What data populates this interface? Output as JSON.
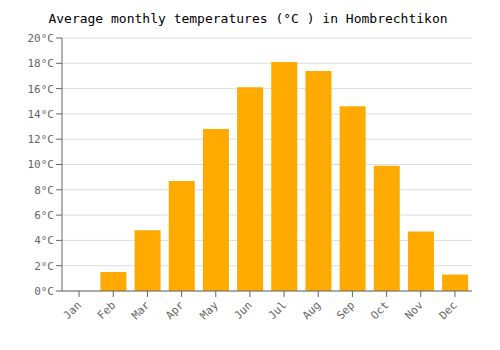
{
  "chart_data": {
    "type": "bar",
    "title": "Average monthly temperatures (°C ) in Hombrechtikon",
    "categories": [
      "Jan",
      "Feb",
      "Mar",
      "Apr",
      "May",
      "Jun",
      "Jul",
      "Aug",
      "Sep",
      "Oct",
      "Nov",
      "Dec"
    ],
    "values": [
      0.0,
      1.5,
      4.8,
      8.7,
      12.8,
      16.1,
      18.1,
      17.4,
      14.6,
      9.9,
      4.7,
      1.3
    ],
    "color": "#FFAA00",
    "ylim": [
      0,
      20
    ],
    "yticks": [
      {
        "value": 0,
        "label": "0°C"
      },
      {
        "value": 2,
        "label": "2°C"
      },
      {
        "value": 4,
        "label": "4°C"
      },
      {
        "value": 6,
        "label": "6°C"
      },
      {
        "value": 8,
        "label": "8°C"
      },
      {
        "value": 10,
        "label": "10°C"
      },
      {
        "value": 12,
        "label": "12°C"
      },
      {
        "value": 14,
        "label": "14°C"
      },
      {
        "value": 16,
        "label": "16°C"
      },
      {
        "value": 18,
        "label": "18°C"
      },
      {
        "value": 20,
        "label": "20°C"
      }
    ],
    "grid": true
  }
}
